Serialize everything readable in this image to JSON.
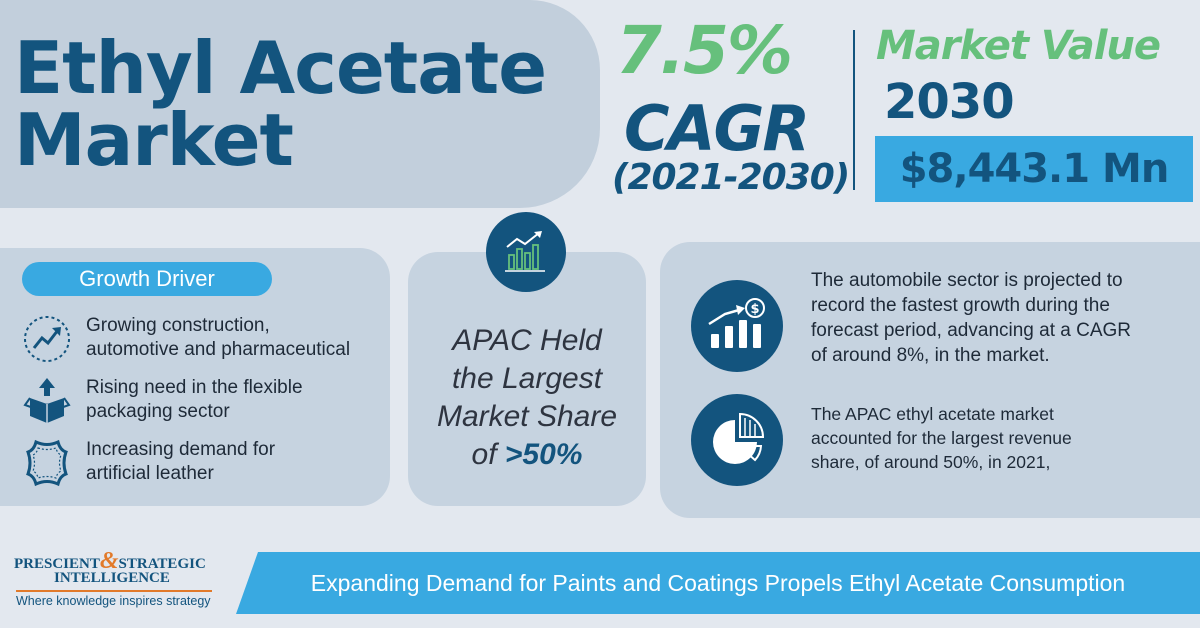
{
  "title": {
    "line1": "Ethyl Acetate",
    "line2": "Market"
  },
  "cagr": {
    "value": "7.5%",
    "label": "CAGR",
    "period": "(2021-2030)"
  },
  "market_value": {
    "title": "Market Value",
    "year": "2030",
    "amount": "$8,443.1 Mn"
  },
  "growth_driver": {
    "heading": "Growth Driver",
    "items": [
      {
        "icon": "growth-chart-icon",
        "lines": [
          "Growing construction,",
          "automotive and pharmaceutical"
        ]
      },
      {
        "icon": "package-box-icon",
        "lines": [
          "Rising need in the flexible",
          "packaging sector"
        ]
      },
      {
        "icon": "leather-hide-icon",
        "lines": [
          "Increasing demand for",
          "artificial leather"
        ]
      }
    ]
  },
  "apac": {
    "icon": "bar-chart-growth-icon",
    "lines": [
      "APAC Held",
      "the Largest",
      "Market Share"
    ],
    "prefix": "of ",
    "highlight": ">50%"
  },
  "insights": [
    {
      "icon": "revenue-growth-icon",
      "lines": [
        "The automobile sector is projected to",
        "record the fastest growth during the",
        "forecast period, advancing at a CAGR",
        "of around 8%, in the market."
      ]
    },
    {
      "icon": "pie-chart-icon",
      "lines": [
        "The APAC ethyl acetate market",
        "accounted for the largest revenue",
        "share, of around 50%, in 2021,"
      ]
    }
  ],
  "logo": {
    "word1": "PRESCIENT",
    "amp": "&",
    "word2": "STRATEGIC",
    "word3": "INTELLIGENCE",
    "tagline": "Where knowledge inspires strategy"
  },
  "banner": "Expanding Demand for Paints and Coatings Propels Ethyl Acetate Consumption",
  "colors": {
    "navy": "#13547e",
    "green": "#66c07c",
    "sky": "#39a9e1",
    "panel": "#c6d3e0",
    "background": "#e3e8ef",
    "orange": "#e27a2a"
  }
}
